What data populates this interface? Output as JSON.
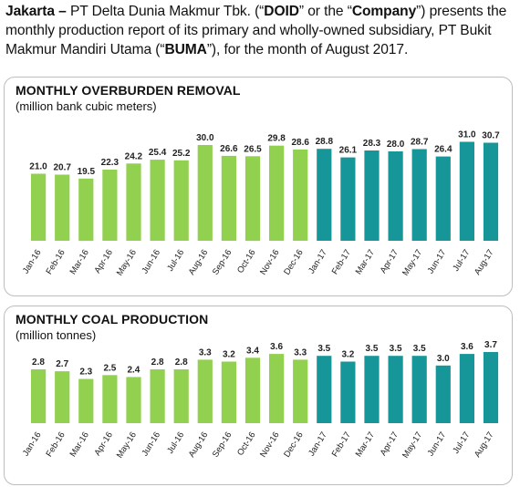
{
  "intro": {
    "p1": "Jakarta – ",
    "p2": "PT Delta Dunia Makmur Tbk. (“",
    "p3": "DOID",
    "p4": "” or the “",
    "p5": "Company",
    "p6": "”) presents the monthly production report of its primary and wholly-owned subsidiary, PT Bukit Makmur Mandiri Utama (“",
    "p7": "BUMA",
    "p8": "”), for the month of August 2017."
  },
  "colors": {
    "green_2016": "#92d050",
    "teal_2017": "#17969a"
  },
  "chart_data": [
    {
      "type": "bar",
      "title": "MONTHLY OVERBURDEN REMOVAL",
      "subtitle": "(million bank cubic meters)",
      "categories": [
        "Jan-16",
        "Feb-16",
        "Mar-16",
        "Apr-16",
        "May-16",
        "Jun-16",
        "Jul-16",
        "Aug-16",
        "Sep-16",
        "Oct-16",
        "Nov-16",
        "Dec-16",
        "Jan-17",
        "Feb-17",
        "Mar-17",
        "Apr-17",
        "May-17",
        "Jun-17",
        "Jul-17",
        "Aug-17"
      ],
      "values": [
        21.0,
        20.7,
        19.5,
        22.3,
        24.2,
        25.4,
        25.2,
        30.0,
        26.6,
        26.5,
        29.8,
        28.6,
        28.8,
        26.1,
        28.3,
        28.0,
        28.7,
        26.4,
        31.0,
        30.7
      ],
      "labels": [
        "21.0",
        "20.7",
        "19.5",
        "22.3",
        "24.2",
        "25.4",
        "25.2",
        "30.0",
        "26.6",
        "26.5",
        "29.8",
        "28.6",
        "28.8",
        "26.1",
        "28.3",
        "28.0",
        "28.7",
        "26.4",
        "31.0",
        "30.7"
      ],
      "ylim": [
        0,
        32
      ],
      "grid": false,
      "legend": "none"
    },
    {
      "type": "bar",
      "title": "MONTHLY COAL PRODUCTION",
      "subtitle": "(million tonnes)",
      "categories": [
        "Jan-16",
        "Feb-16",
        "Mar-16",
        "Apr-16",
        "May-16",
        "Jun-16",
        "Jul-16",
        "Aug-16",
        "Sep-16",
        "Oct-16",
        "Nov-16",
        "Dec-16",
        "Jan-17",
        "Feb-17",
        "Mar-17",
        "Apr-17",
        "May-17",
        "Jun-17",
        "Jul-17",
        "Aug-17"
      ],
      "values": [
        2.8,
        2.7,
        2.3,
        2.5,
        2.4,
        2.8,
        2.8,
        3.3,
        3.2,
        3.4,
        3.6,
        3.3,
        3.5,
        3.2,
        3.5,
        3.5,
        3.5,
        3.0,
        3.6,
        3.7
      ],
      "labels": [
        "2.8",
        "2.7",
        "2.3",
        "2.5",
        "2.4",
        "2.8",
        "2.8",
        "3.3",
        "3.2",
        "3.4",
        "3.6",
        "3.3",
        "3.5",
        "3.2",
        "3.5",
        "3.5",
        "3.5",
        "3.0",
        "3.6",
        "3.7"
      ],
      "ylim": [
        0,
        3.7
      ],
      "grid": false,
      "legend": "none"
    }
  ]
}
